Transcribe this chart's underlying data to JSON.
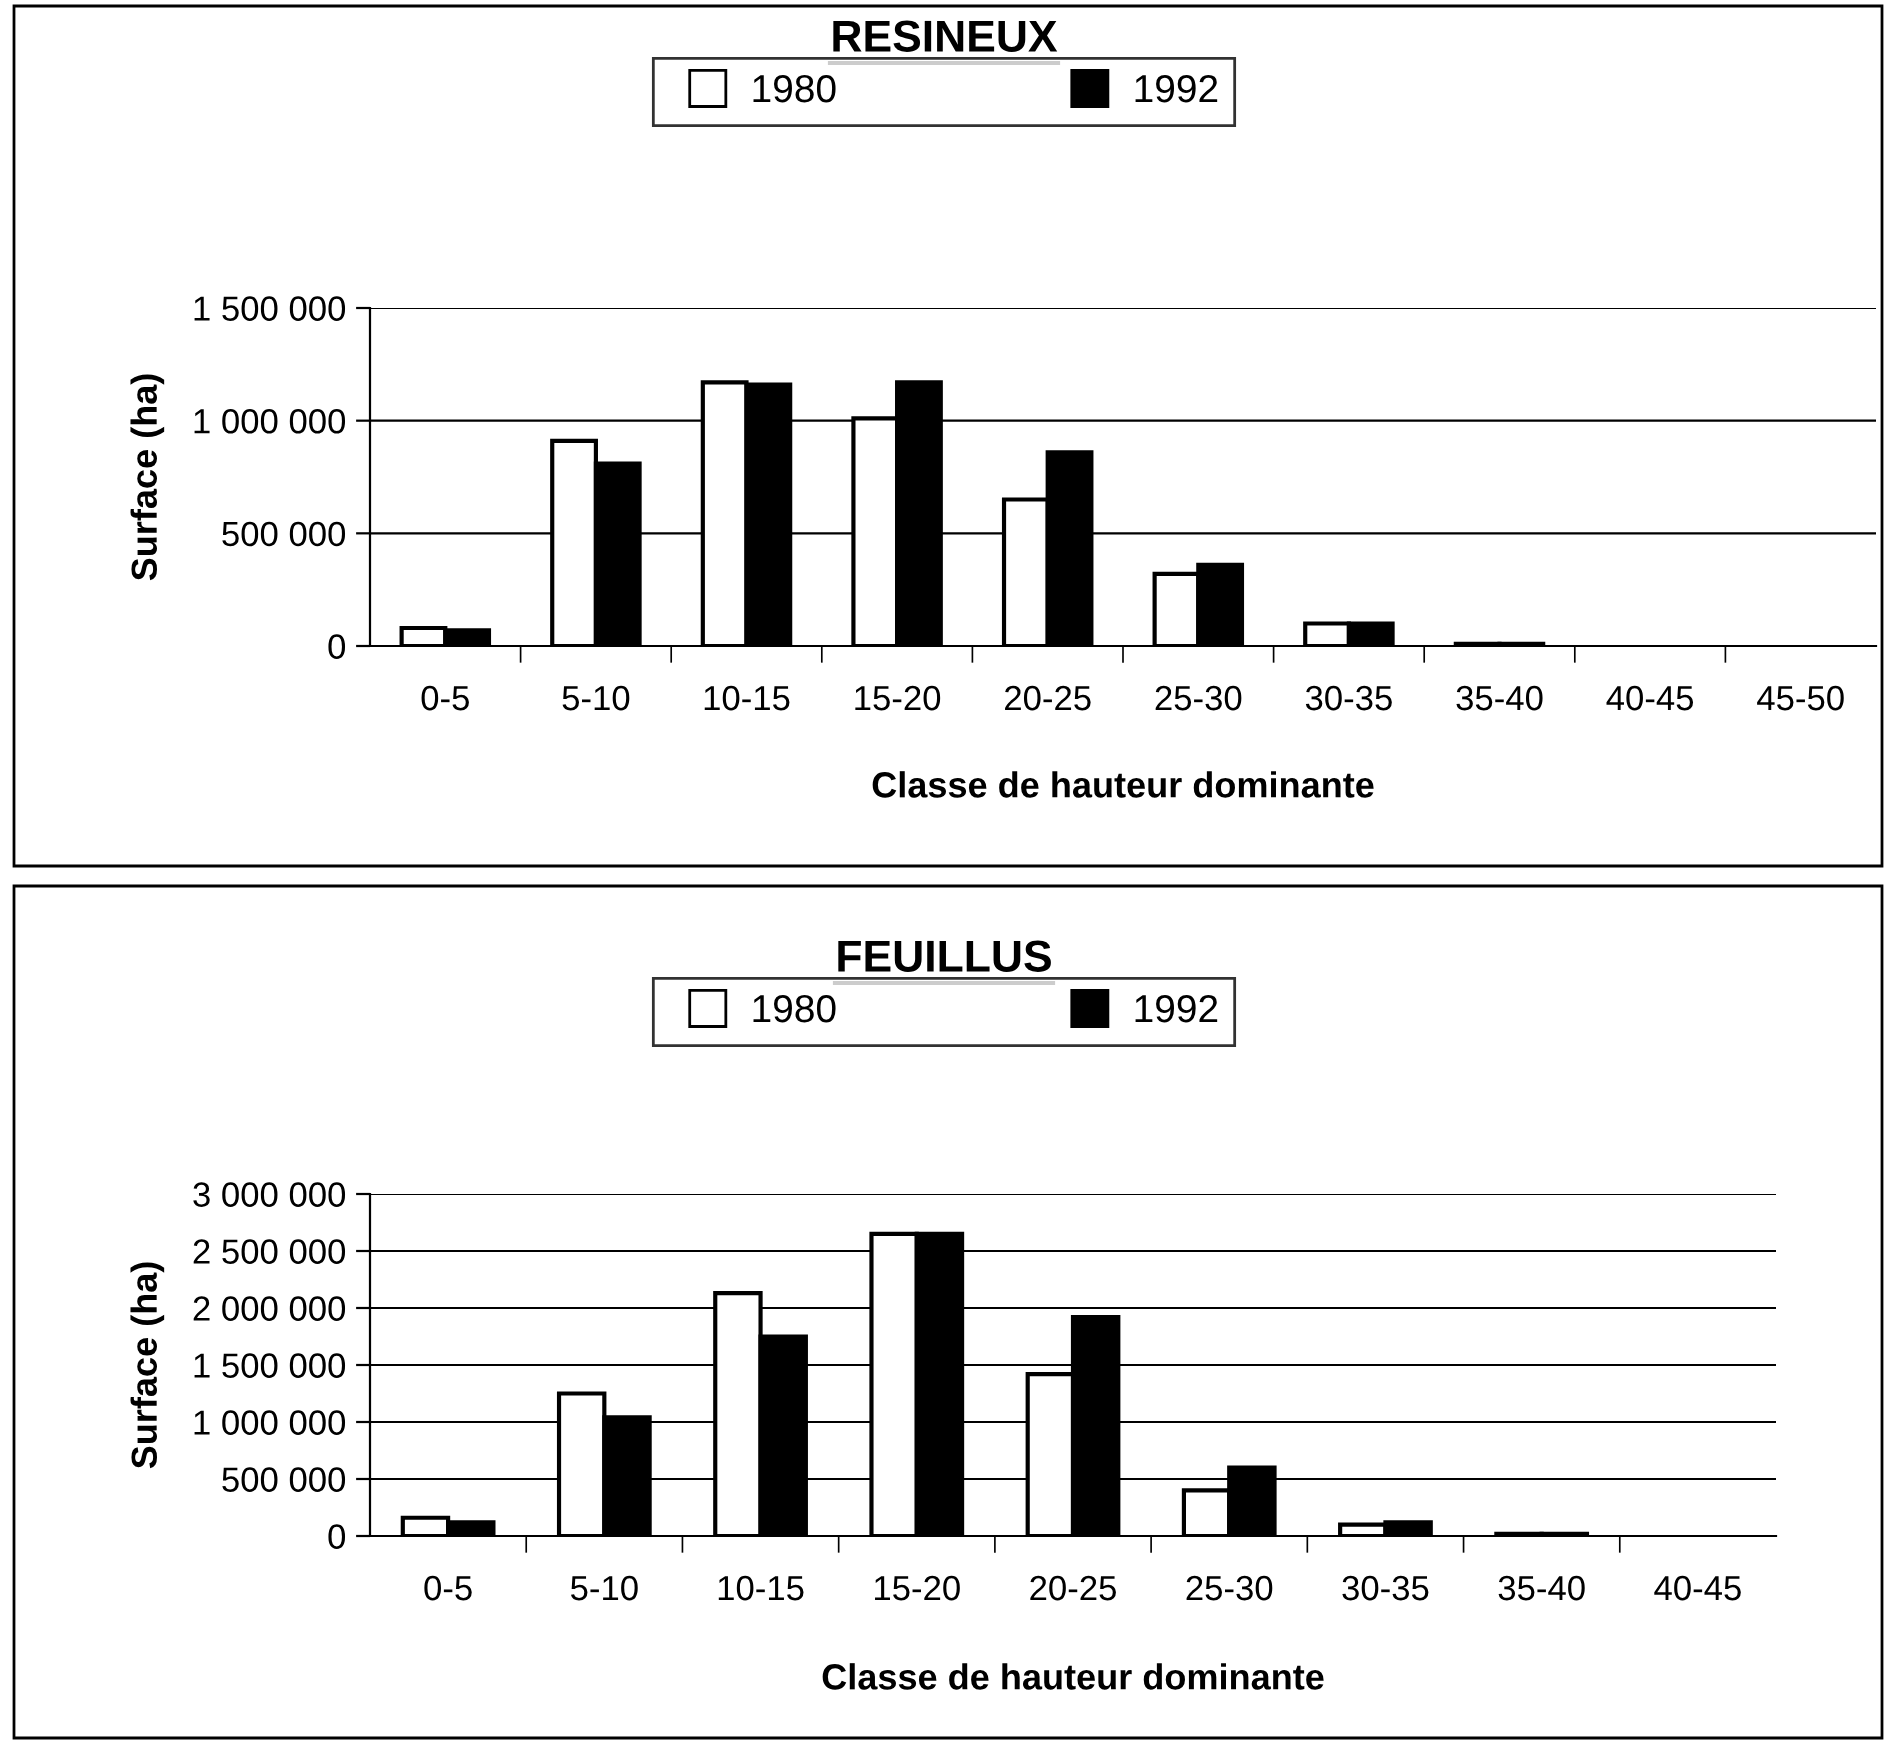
{
  "chart_data": [
    {
      "type": "bar",
      "title": "RESINEUX",
      "xlabel": "Classe de hauteur dominante",
      "ylabel": "Surface (ha)",
      "categories": [
        "0-5",
        "5-10",
        "10-15",
        "15-20",
        "20-25",
        "25-30",
        "30-35",
        "35-40",
        "40-45",
        "45-50"
      ],
      "series": [
        {
          "name": "1980",
          "color": "#ffffff",
          "values": [
            80000,
            910000,
            1170000,
            1010000,
            650000,
            320000,
            100000,
            10000,
            null,
            null
          ]
        },
        {
          "name": "1992",
          "color": "#000000",
          "values": [
            70000,
            810000,
            1160000,
            1170000,
            860000,
            360000,
            100000,
            10000,
            null,
            null
          ]
        }
      ],
      "ylim": [
        0,
        1500000
      ],
      "yticks": [
        0,
        {
          "value": 500000,
          "label": "500 000"
        },
        {
          "value": 1000000,
          "label": "1 000 000"
        },
        {
          "value": 1500000,
          "label": "1 500 000"
        }
      ],
      "grid": "y",
      "legend": "top"
    },
    {
      "type": "bar",
      "title": "FEUILLUS",
      "xlabel": "Classe de hauteur dominante",
      "ylabel": "Surface (ha)",
      "categories": [
        "0-5",
        "5-10",
        "10-15",
        "15-20",
        "20-25",
        "25-30",
        "30-35",
        "35-40",
        "40-45"
      ],
      "series": [
        {
          "name": "1980",
          "color": "#ffffff",
          "values": [
            160000,
            1250000,
            2130000,
            2650000,
            1420000,
            400000,
            100000,
            20000,
            null
          ]
        },
        {
          "name": "1992",
          "color": "#000000",
          "values": [
            120000,
            1040000,
            1750000,
            2650000,
            1920000,
            600000,
            120000,
            20000,
            null
          ]
        }
      ],
      "ylim": [
        0,
        3000000
      ],
      "yticks": [
        0,
        {
          "value": 500000,
          "label": "500 000"
        },
        {
          "value": 1000000,
          "label": "1 000 000"
        },
        {
          "value": 1500000,
          "label": "1 500 000"
        },
        {
          "value": 2000000,
          "label": "2 000 000"
        },
        {
          "value": 2500000,
          "label": "2 500 000"
        },
        {
          "value": 3000000,
          "label": "3 000 000"
        }
      ],
      "grid": "y",
      "legend": "top"
    }
  ]
}
